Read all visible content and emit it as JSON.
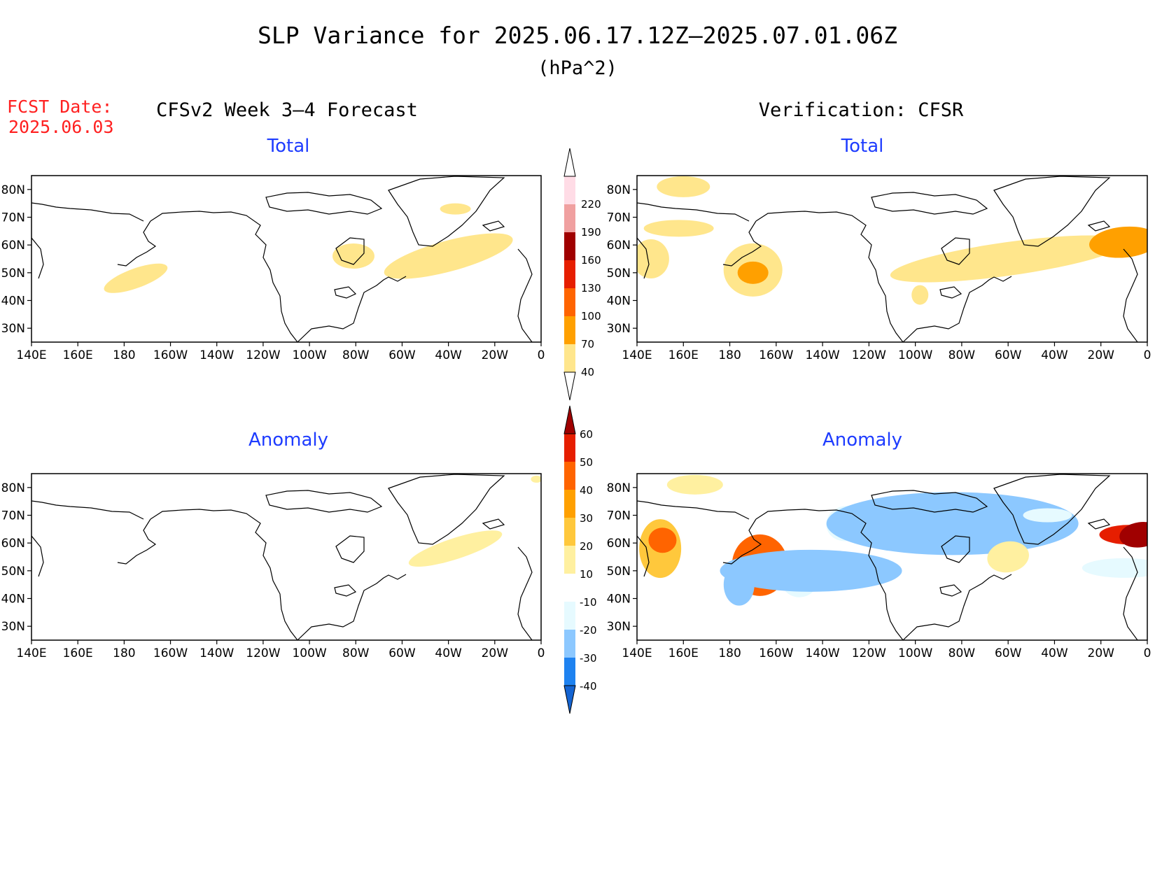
{
  "title": "SLP Variance for 2025.06.17.12Z–2025.07.01.06Z",
  "units": "(hPa^2)",
  "fcst_label": "FCST Date:",
  "fcst_date": "2025.06.03",
  "left_heading": "CFSv2 Week 3–4 Forecast",
  "right_heading": "Verification: CFSR",
  "panel_titles": {
    "forecast_total": "Total",
    "verif_total": "Total",
    "forecast_anomaly": "Anomaly",
    "verif_anomaly": "Anomaly"
  },
  "lat_ticks": [
    "80N",
    "70N",
    "60N",
    "50N",
    "40N",
    "30N"
  ],
  "lat_values": [
    80,
    70,
    60,
    50,
    40,
    30
  ],
  "lon_ticks": [
    "140E",
    "160E",
    "180",
    "160W",
    "140W",
    "120W",
    "100W",
    "80W",
    "60W",
    "40W",
    "20W",
    "0"
  ],
  "lon_values": [
    140,
    160,
    180,
    200,
    220,
    240,
    260,
    280,
    300,
    320,
    340,
    360
  ],
  "map_extent": {
    "lon_min": 140,
    "lon_max": 360,
    "lat_min": 25,
    "lat_max": 85
  },
  "colors": {
    "title": "#000000",
    "fcst": "#ff2020",
    "panel_title": "#1e3cff",
    "coast": "#000000"
  },
  "total_colorbar": {
    "levels": [
      "40",
      "70",
      "100",
      "130",
      "160",
      "190",
      "220"
    ],
    "colors": [
      "#ffe68c",
      "#ffa000",
      "#ff6400",
      "#e61e00",
      "#a00000",
      "#f0a0a0",
      "#ffdce6",
      "#ffffff"
    ]
  },
  "anomaly_colorbar": {
    "levels": [
      "-40",
      "-30",
      "-20",
      "-10",
      "10",
      "20",
      "30",
      "40",
      "50",
      "60"
    ],
    "colors": [
      "#1464d2",
      "#1e82f0",
      "#8cc8ff",
      "#e6faff",
      "#ffffff",
      "#fff0a0",
      "#ffc83c",
      "#ffa000",
      "#ff6400",
      "#e61e00",
      "#a00000"
    ]
  },
  "chart_data": [
    {
      "type": "heatmap",
      "panel": "forecast_total",
      "title": "Total",
      "shaded": [
        {
          "lon": 185,
          "lat": 48,
          "level": 40
        },
        {
          "lon": 279,
          "lat": 56,
          "level": 40
        },
        {
          "lon": 320,
          "lat": 56,
          "level": 40
        },
        {
          "lon": 323,
          "lat": 73,
          "level": 40
        }
      ]
    },
    {
      "type": "heatmap",
      "panel": "verif_total",
      "title": "Total",
      "shaded": [
        {
          "lon": 160,
          "lat": 81,
          "level": 40
        },
        {
          "lon": 158,
          "lat": 66,
          "level": 40
        },
        {
          "lon": 146,
          "lat": 55,
          "level": 40
        },
        {
          "lon": 190,
          "lat": 51,
          "level": 40
        },
        {
          "lon": 190,
          "lat": 50,
          "level": 70
        },
        {
          "lon": 300,
          "lat": 55,
          "level": 40
        },
        {
          "lon": 350,
          "lat": 61,
          "level": 70
        },
        {
          "lon": 262,
          "lat": 42,
          "level": 40
        }
      ]
    },
    {
      "type": "heatmap",
      "panel": "forecast_anomaly",
      "title": "Anomaly",
      "shaded": [
        {
          "lon": 323,
          "lat": 58,
          "level": 10
        },
        {
          "lon": 358,
          "lat": 83,
          "level": 10
        }
      ]
    },
    {
      "type": "heatmap",
      "panel": "verif_anomaly",
      "title": "Anomaly",
      "shaded": [
        {
          "lon": 150,
          "lat": 58,
          "level": 20
        },
        {
          "lon": 151,
          "lat": 61,
          "level": 40
        },
        {
          "lon": 165,
          "lat": 81,
          "level": 10
        },
        {
          "lon": 193,
          "lat": 52,
          "level": 40
        },
        {
          "lon": 193,
          "lat": 51,
          "level": 60
        },
        {
          "lon": 184,
          "lat": 45,
          "level": -20
        },
        {
          "lon": 210,
          "lat": 46,
          "level": -10
        },
        {
          "lon": 215,
          "lat": 50,
          "level": -20
        },
        {
          "lon": 230,
          "lat": 67,
          "level": -10
        },
        {
          "lon": 276,
          "lat": 67,
          "level": -20
        },
        {
          "lon": 300,
          "lat": 55,
          "level": 10
        },
        {
          "lon": 352,
          "lat": 63,
          "level": 50
        },
        {
          "lon": 357,
          "lat": 63,
          "level": 60
        },
        {
          "lon": 350,
          "lat": 51,
          "level": -10
        },
        {
          "lon": 317,
          "lat": 70,
          "level": -10
        }
      ]
    }
  ]
}
